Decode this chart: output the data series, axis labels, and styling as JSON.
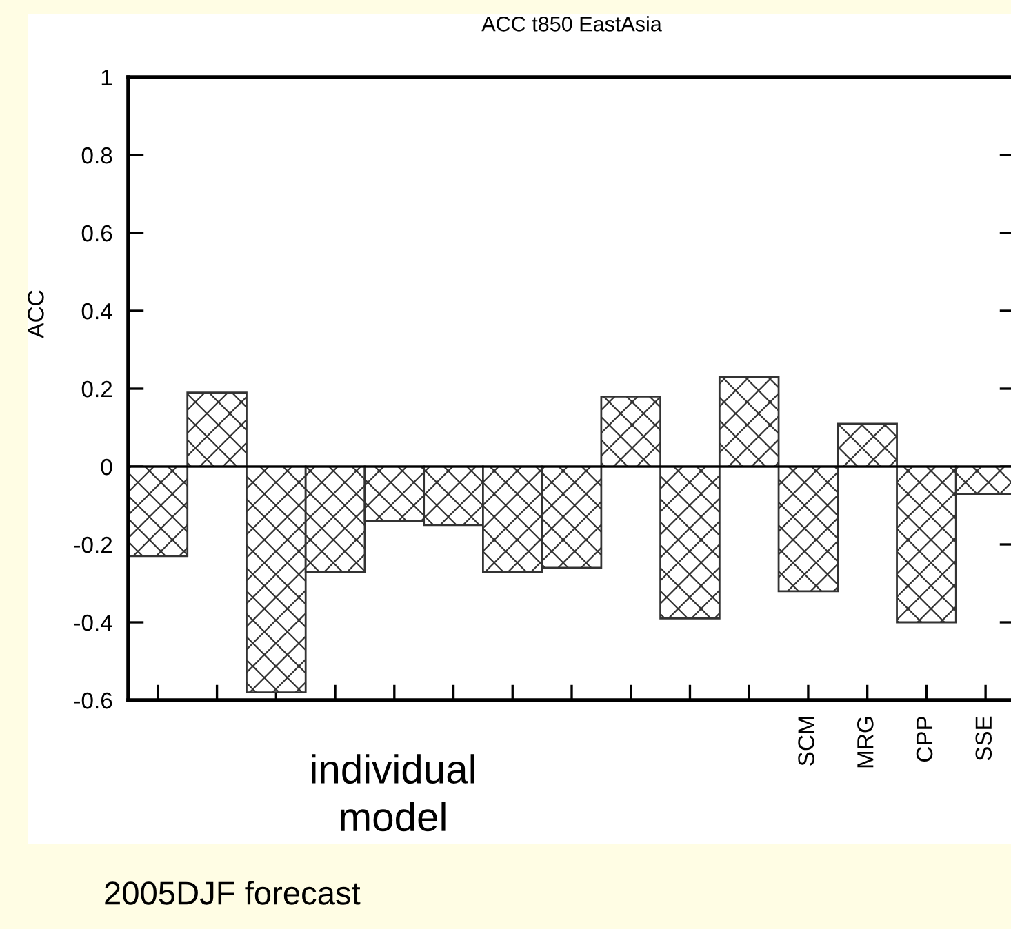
{
  "chart_data": {
    "type": "bar",
    "title": "ACC t850 EastAsia",
    "ylabel": "ACC",
    "categories": [
      null,
      null,
      null,
      null,
      null,
      null,
      null,
      null,
      null,
      null,
      null,
      "SCM",
      "MRG",
      "CPP",
      "SSE"
    ],
    "values": [
      -0.23,
      0.19,
      -0.58,
      -0.27,
      -0.14,
      -0.15,
      -0.27,
      -0.26,
      0.18,
      -0.39,
      0.23,
      -0.32,
      0.11,
      -0.4,
      -0.07
    ],
    "color": "#333333",
    "ylim": [
      -0.6,
      1
    ],
    "yticks": [
      {
        "value": -0.6,
        "label": "-0.6"
      },
      {
        "value": -0.4,
        "label": "-0.4"
      },
      {
        "value": -0.2,
        "label": "-0.2"
      },
      0,
      0.2,
      0.4,
      0.6,
      0.8,
      1
    ],
    "ref_lines": [
      {
        "axis": "y",
        "value": 0,
        "color": "#000000"
      }
    ],
    "annotations": [
      "individual\nmodel",
      "2005DJF forecast"
    ]
  }
}
